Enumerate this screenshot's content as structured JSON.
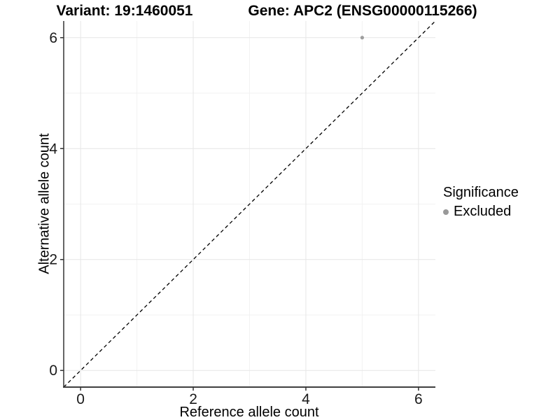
{
  "titles": {
    "left": "Variant: 19:1460051",
    "right": "Gene: APC2 (ENSG00000115266)"
  },
  "chart_data": {
    "type": "scatter",
    "title_left": "Variant: 19:1460051",
    "title_right": "Gene: APC2 (ENSG00000115266)",
    "xlabel": "Reference allele count",
    "ylabel": "Alternative allele count",
    "xlim": [
      -0.3,
      6.3
    ],
    "ylim": [
      -0.3,
      6.3
    ],
    "x_ticks": [
      0,
      2,
      4,
      6
    ],
    "y_ticks": [
      0,
      2,
      4,
      6
    ],
    "x_minor_ticks": [
      1,
      3,
      5
    ],
    "y_minor_ticks": [
      1,
      3,
      5
    ],
    "grid": true,
    "points": [
      {
        "x": 5,
        "y": 6,
        "series": "Excluded"
      }
    ],
    "reference_line": {
      "kind": "identity",
      "style": "dashed",
      "color": "#000000"
    },
    "legend": {
      "title": "Significance",
      "position": "right",
      "entries": [
        {
          "label": "Excluded",
          "color": "#999999",
          "marker": "circle"
        }
      ]
    },
    "colors": {
      "point": "#9e9e9e",
      "grid_major": "#e6e6e6",
      "grid_minor": "#f2f2f2",
      "axis_line": "#404040",
      "tick_mark": "#333333",
      "tick_label": "#1a1a1a",
      "background": "#ffffff"
    }
  }
}
